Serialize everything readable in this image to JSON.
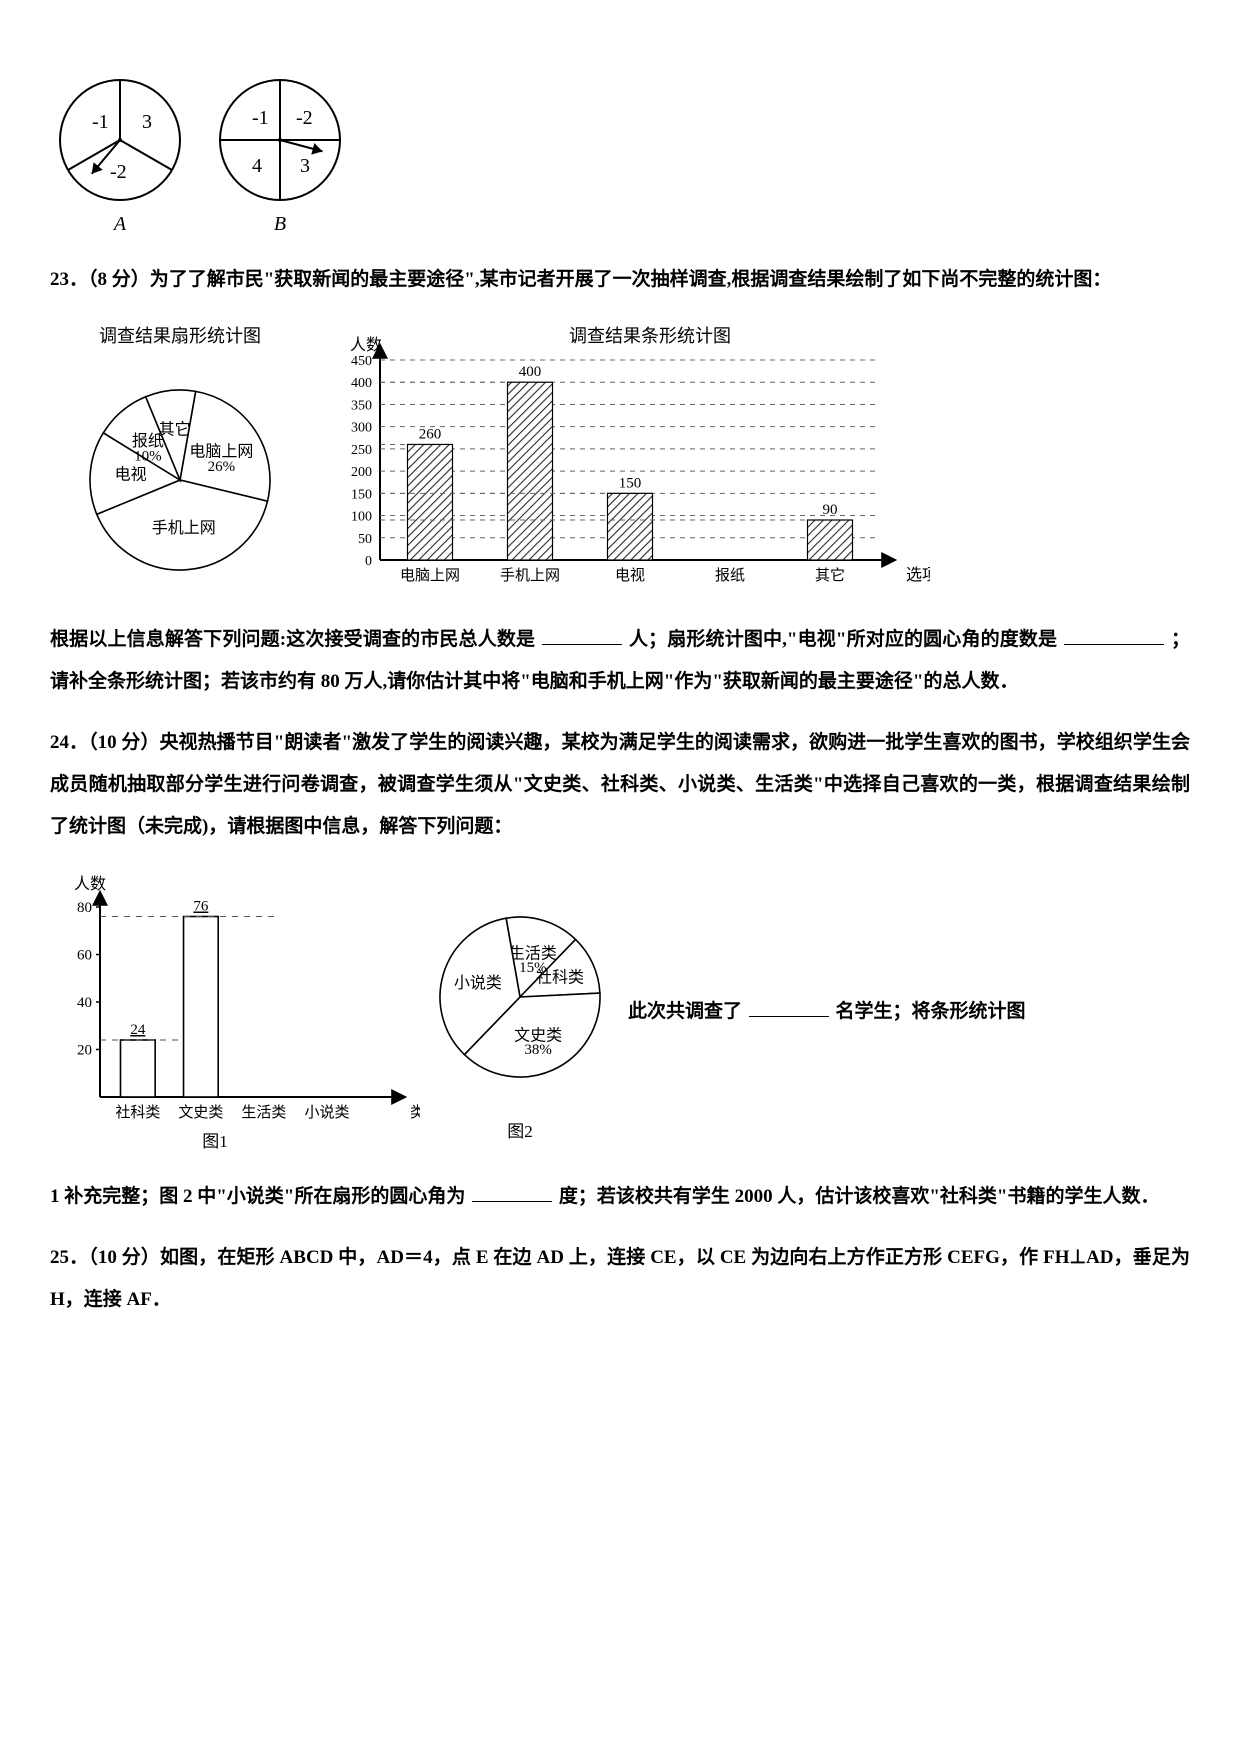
{
  "spinners": {
    "A": {
      "label": "A",
      "sectors": [
        "-1",
        "3",
        "-2"
      ]
    },
    "B": {
      "label": "B",
      "sectors": [
        "-1",
        "-2",
        "4",
        "3"
      ]
    }
  },
  "q23": {
    "prefix": "23．（8 分）为了了解市民\"获取新闻的最主要途径\",某市记者开展了一次抽样调查,根据调查结果绘制了如下尚不完整的统计图：",
    "pie": {
      "title": "调查结果扇形统计图",
      "slices": [
        {
          "label": "电脑上网",
          "value": 26,
          "showPct": true
        },
        {
          "label": "手机上网",
          "value": 40,
          "showPct": false
        },
        {
          "label": "电视",
          "value": 15,
          "showPct": false
        },
        {
          "label": "报纸",
          "value": 10,
          "showPct": true
        },
        {
          "label": "其它",
          "value": 9,
          "showPct": false
        }
      ],
      "line_color": "#000000",
      "fill_color": "#ffffff",
      "label_fontsize": 16
    },
    "bar": {
      "title": "调查结果条形统计图",
      "y_label": "人数",
      "x_label": "选项",
      "categories": [
        "电脑上网",
        "手机上网",
        "电视",
        "报纸",
        "其它"
      ],
      "values": [
        260,
        400,
        150,
        null,
        90
      ],
      "value_labels": [
        "260",
        "400",
        "150",
        "",
        "90"
      ],
      "ylim": [
        0,
        450
      ],
      "ytick_step": 50,
      "bar_fill": "hatch",
      "hatch_color": "#2a2a2a",
      "axis_color": "#000000",
      "grid_color": "#666666"
    },
    "body_1": "根据以上信息解答下列问题:这次接受调查的市民总人数是",
    "body_2": "人；扇形统计图中,\"电视\"所对应的圆心角的度数是",
    "body_3": "；请补全条形统计图；若该市约有 80 万人,请你估计其中将\"电脑和手机上网\"作为\"获取新闻的最主要途径\"的总人数．",
    "blank1_width": 80,
    "blank2_width": 100
  },
  "q24": {
    "prefix": "24．（10 分）央视热播节目\"朗读者\"激发了学生的阅读兴趣，某校为满足学生的阅读需求，欲购进一批学生喜欢的图书，学校组织学生会成员随机抽取部分学生进行问卷调查，被调查学生须从\"文史类、社科类、小说类、生活类\"中选择自己喜欢的一类，根据调查结果绘制了统计图（未完成)，请根据图中信息，解答下列问题：",
    "bar": {
      "y_label": "人数",
      "x_label": "类别",
      "categories": [
        "社科类",
        "文史类",
        "生活类",
        "小说类"
      ],
      "values": [
        24,
        76,
        null,
        null
      ],
      "value_labels": [
        "24",
        "76",
        "",
        ""
      ],
      "ylim": [
        0,
        80
      ],
      "yticks": [
        20,
        40,
        60,
        80
      ],
      "axis_color": "#000000",
      "grid_color": "#555555",
      "caption": "图1"
    },
    "pie": {
      "slices": [
        {
          "label": "生活类",
          "value": 15,
          "showPct": true
        },
        {
          "label": "社科类",
          "value": 12,
          "showPct": false
        },
        {
          "label": "文史类",
          "value": 38,
          "showPct": true
        },
        {
          "label": "小说类",
          "value": 35,
          "showPct": false
        }
      ],
      "line_color": "#000000",
      "fill_color": "#ffffff",
      "label_fontsize": 16,
      "caption": "图2"
    },
    "inline_right": "此次共调查了",
    "inline_right_2": "名学生；将条形统计图",
    "body_1": "1 补充完整；图 2 中\"小说类\"所在扇形的圆心角为",
    "body_2": "度；若该校共有学生 2000 人，估计该校喜欢\"社科类\"书籍的学生人数．",
    "blank1_width": 80,
    "blank2_width": 80
  },
  "q25": {
    "text": "25．（10 分）如图，在矩形 ABCD 中，AD＝4，点 E 在边 AD 上，连接 CE，以 CE 为边向右上方作正方形 CEFG，作 FH⊥AD，垂足为 H，连接 AF．"
  }
}
